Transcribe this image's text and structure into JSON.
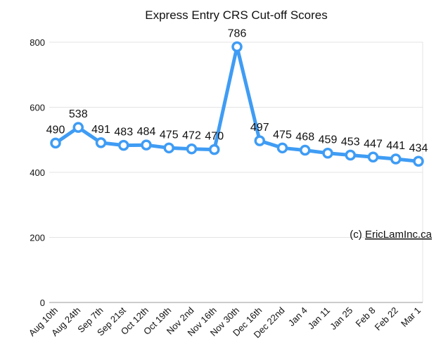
{
  "chart_data": {
    "type": "line",
    "title": "Express Entry CRS Cut-off Scores",
    "xlabel": "",
    "ylabel": "",
    "categories": [
      "Aug 10th",
      "Aug 24th",
      "Sep 7th",
      "Sep 21st",
      "Oct 12th",
      "Oct 19th",
      "Nov 2nd",
      "Nov 16th",
      "Nov 30th",
      "Dec 16th",
      "Dec 22nd",
      "Jan 4",
      "Jan 11",
      "Jan 25",
      "Feb 8",
      "Feb 22",
      "Mar 1"
    ],
    "series": [
      {
        "values": [
          490,
          538,
          491,
          483,
          484,
          475,
          472,
          470,
          786,
          497,
          475,
          468,
          459,
          453,
          447,
          441,
          434
        ]
      }
    ],
    "ylim": [
      0,
      800
    ],
    "yticks": [
      0,
      200,
      400,
      600,
      800
    ],
    "grid": true,
    "legend": "none",
    "line_color": "#3f9cf4",
    "credit": {
      "prefix": "(c) ",
      "link": "EricLamInc.ca"
    }
  }
}
